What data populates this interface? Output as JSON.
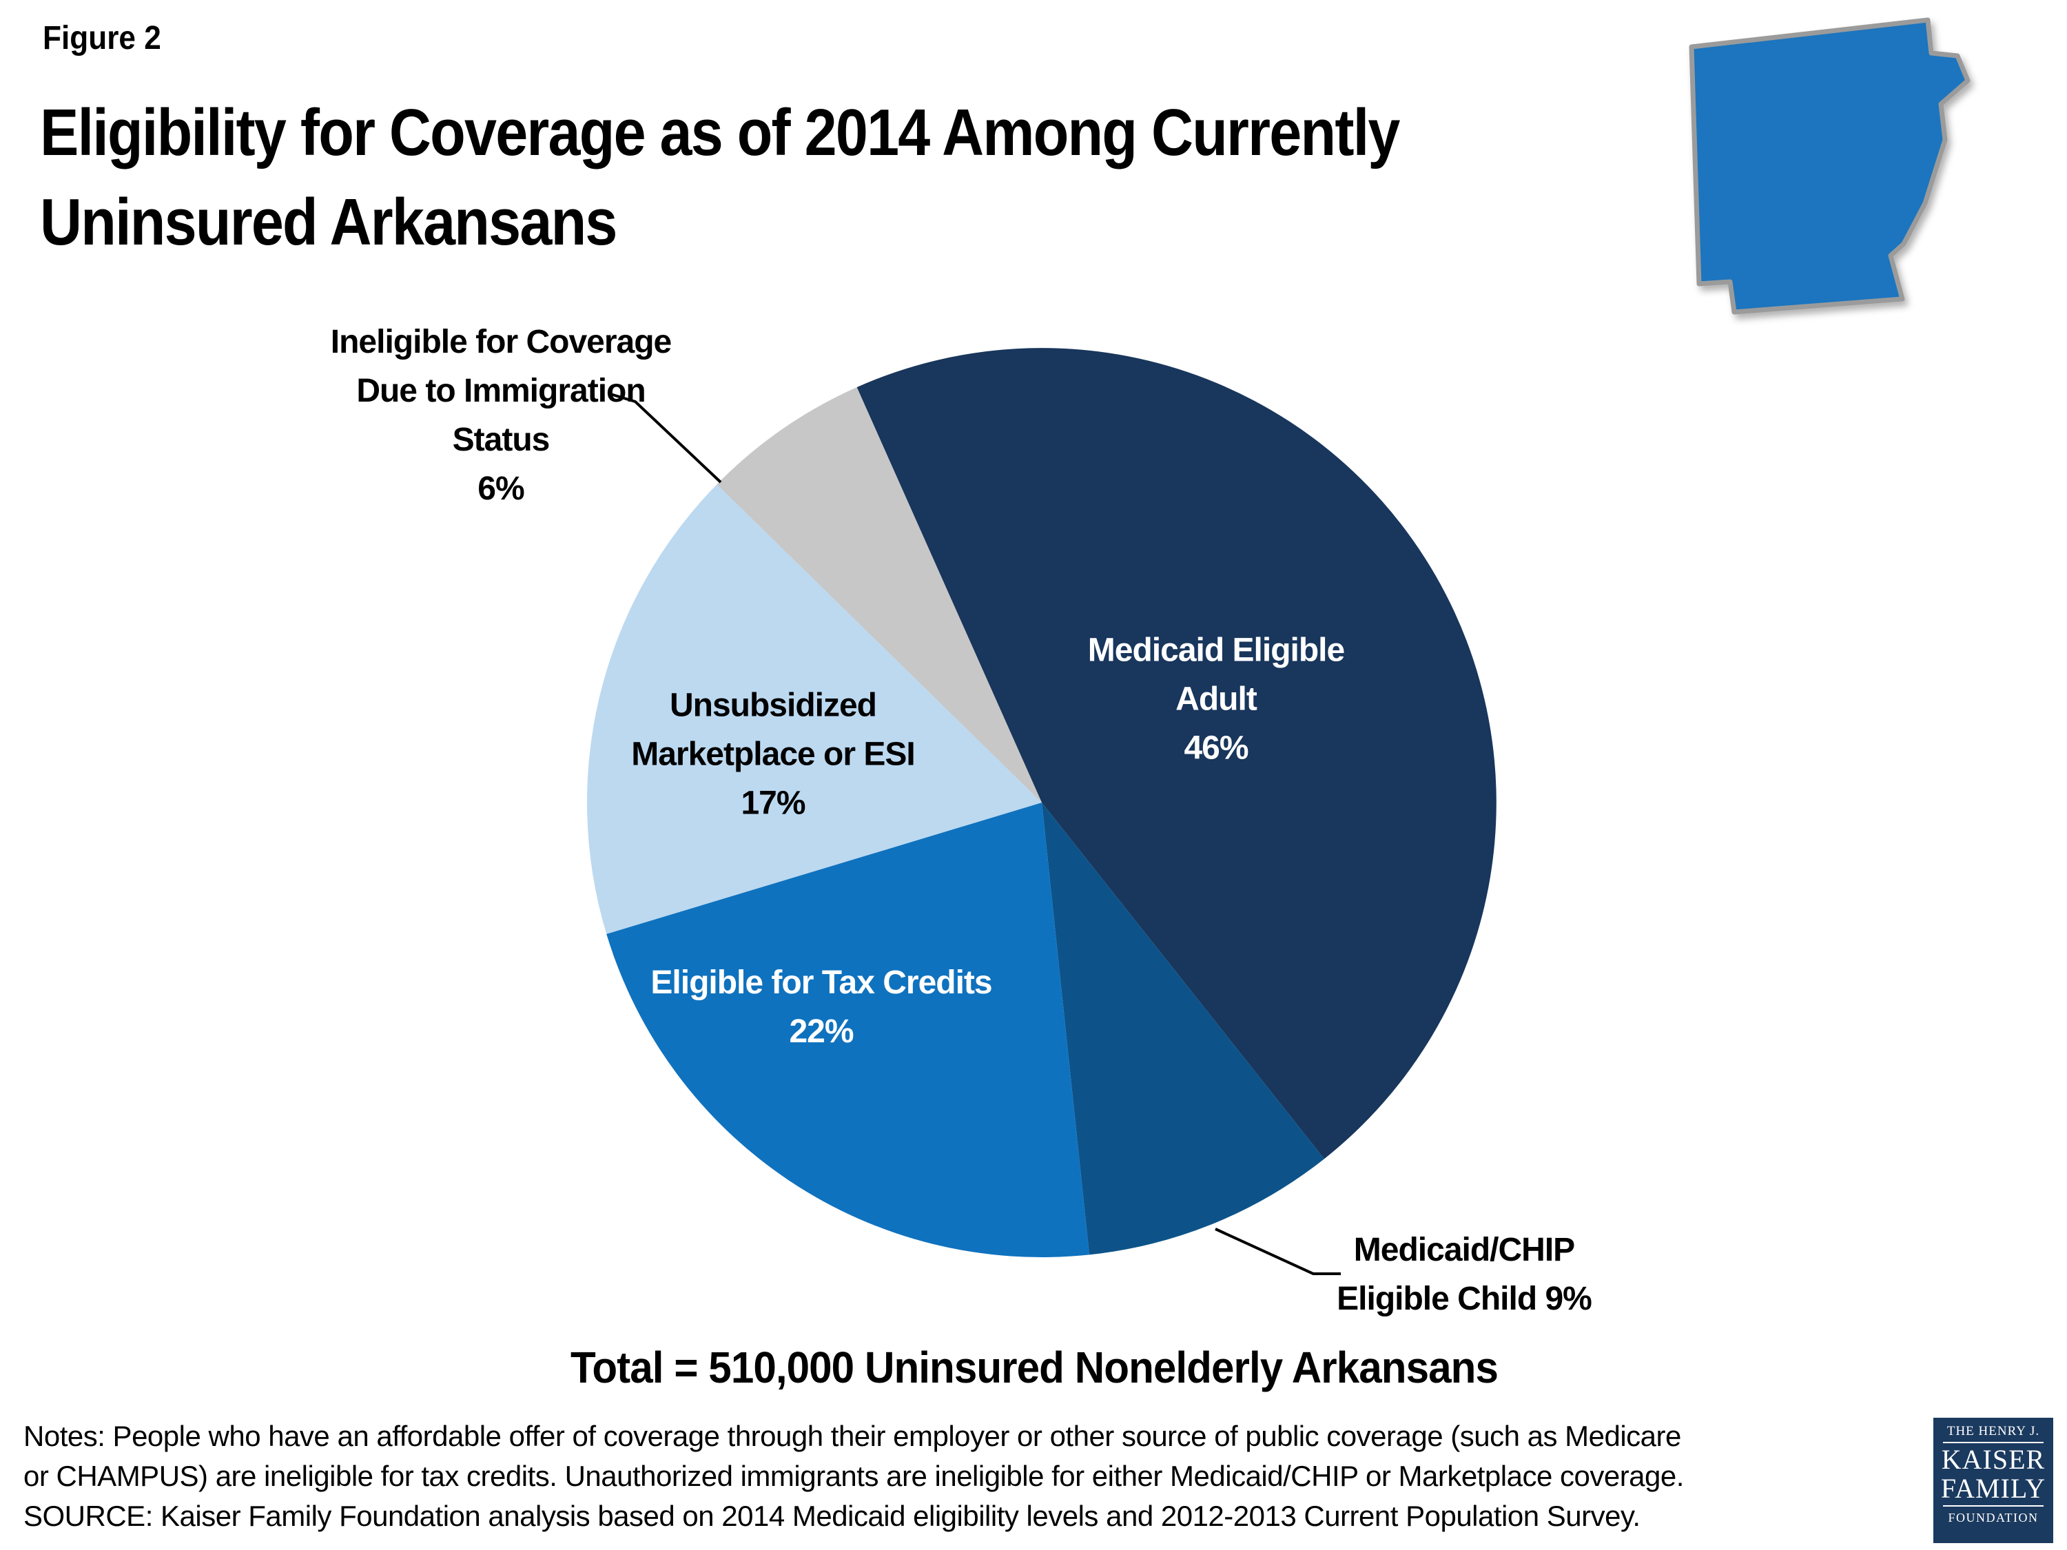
{
  "figure_label": "Figure 2",
  "title_lines": [
    "Eligibility for Coverage as of 2014 Among Currently",
    "Uninsured Arkansans"
  ],
  "total_line": "Total = 510,000 Uninsured Nonelderly Arkansans",
  "notes_lines": [
    "Notes: People who have an affordable offer of coverage through their employer or other source of public coverage (such as Medicare",
    "or CHAMPUS) are ineligible for tax credits. Unauthorized immigrants are ineligible for either Medicaid/CHIP or Marketplace coverage.",
    "SOURCE: Kaiser Family Foundation analysis based on 2014 Medicaid eligibility levels and 2012-2013 Current Population Survey."
  ],
  "logo": {
    "line1": "THE HENRY J.",
    "line2": "KAISER",
    "line3": "FAMILY",
    "line4": "FOUNDATION",
    "bg_color": "#1B3A5F"
  },
  "arkansas_map": {
    "fill": "#1C75BE",
    "border": "#9B9B9B"
  },
  "chart_data": {
    "type": "pie",
    "title": "Eligibility for Coverage as of 2014 Among Currently Uninsured Arkansans",
    "total_label": "Total = 510,000 Uninsured Nonelderly Arkansans",
    "total_value": 510000,
    "units": "percent",
    "legend_position": "none",
    "start_angle_deg": -24,
    "categories": [
      "Medicaid Eligible Adult",
      "Medicaid/CHIP Eligible Child",
      "Eligible for Tax Credits",
      "Unsubsidized Marketplace or ESI",
      "Ineligible for Coverage Due to Immigration Status"
    ],
    "values": [
      46,
      9,
      22,
      17,
      6
    ],
    "slices": [
      {
        "label": "Medicaid Eligible Adult",
        "percent": 46,
        "color": "#19365C",
        "label_lines": [
          "Medicaid Eligible",
          "Adult",
          "46%"
        ],
        "label_placement": "inside"
      },
      {
        "label": "Medicaid/CHIP Eligible Child",
        "percent": 9,
        "color": "#0D5389",
        "label_lines": [
          "Medicaid/CHIP",
          "Eligible Child 9%"
        ],
        "label_placement": "outside-leader-line"
      },
      {
        "label": "Eligible for Tax Credits",
        "percent": 22,
        "color": "#0F72BE",
        "label_lines": [
          "Eligible for Tax Credits",
          "22%"
        ],
        "label_placement": "inside"
      },
      {
        "label": "Unsubsidized Marketplace or ESI",
        "percent": 17,
        "color": "#BCD9F0",
        "label_lines": [
          "Unsubsidized",
          "Marketplace or ESI",
          "17%"
        ],
        "label_placement": "inside"
      },
      {
        "label": "Ineligible for Coverage Due to Immigration Status",
        "percent": 6,
        "color": "#C7C7C7",
        "label_lines": [
          "Ineligible for Coverage",
          "Due to Immigration",
          "Status",
          "6%"
        ],
        "label_placement": "outside-leader-line"
      }
    ]
  }
}
